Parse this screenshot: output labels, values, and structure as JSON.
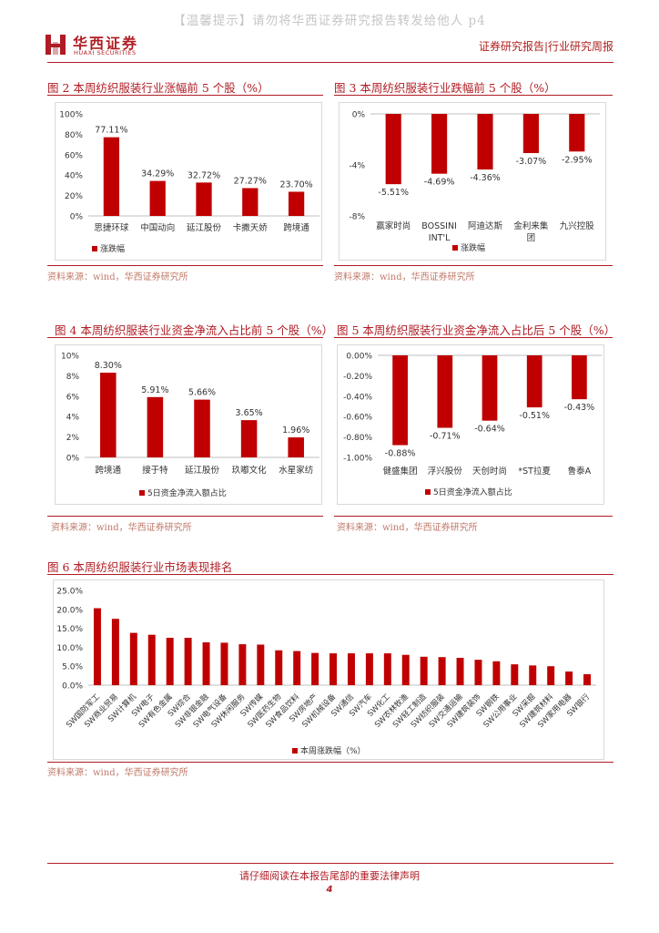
{
  "header": {
    "watermark": "【温馨提示】请勿将华西证券研究报告转发给他人 p4",
    "logo_cn": "华西证券",
    "logo_en": "HUAXI SECURITIES",
    "report_type": "证券研究报告|行业研究周报",
    "logo_mark_icon": "huaxi-logo-icon",
    "accent_color": "#b01c24",
    "bar_color": "#c00000"
  },
  "fig2": {
    "title": "图 2 本周纺织服装行业涨幅前 5 个股（%）",
    "source": "资料来源：wind，华西证券研究所",
    "chart_data": {
      "type": "bar",
      "categories": [
        "思捷环球",
        "中国动向",
        "延江股份",
        "卡撒天娇",
        "跨境通"
      ],
      "values": [
        77.11,
        34.29,
        32.72,
        27.27,
        23.7
      ],
      "value_labels": [
        "77.11%",
        "34.29%",
        "32.72%",
        "27.27%",
        "23.70%"
      ],
      "ylim": [
        0,
        100
      ],
      "yticks": [
        0,
        20,
        40,
        60,
        80,
        100
      ],
      "ytick_labels": [
        "0%",
        "20%",
        "40%",
        "60%",
        "80%",
        "100%"
      ],
      "legend": "涨跌幅"
    }
  },
  "fig3": {
    "title": "图 3 本周纺织服装行业跌幅前 5 个股（%）",
    "source": "资料来源：wind，华西证券研究所",
    "chart_data": {
      "type": "bar",
      "categories": [
        "赢家时尚",
        "BOSSINI INT'L",
        "阿迪达斯",
        "金利来集团",
        "九兴控股"
      ],
      "values": [
        -5.51,
        -4.69,
        -4.36,
        -3.07,
        -2.95
      ],
      "value_labels": [
        "-5.51%",
        "-4.69%",
        "-4.36%",
        "-3.07%",
        "-2.95%"
      ],
      "ylim": [
        -8,
        0
      ],
      "yticks": [
        0,
        -4,
        -8
      ],
      "ytick_labels": [
        "0%",
        "-4%",
        "-8%"
      ],
      "legend": "涨跌幅"
    }
  },
  "fig4": {
    "title": "图 4 本周纺织服装行业资金净流入占比前 5 个股（%）",
    "source": "资料来源：wind，华西证券研究所",
    "chart_data": {
      "type": "bar",
      "categories": [
        "跨境通",
        "搜于特",
        "延江股份",
        "玖嘟文化",
        "水星家纺"
      ],
      "values": [
        8.3,
        5.91,
        5.66,
        3.65,
        1.96
      ],
      "value_labels": [
        "8.30%",
        "5.91%",
        "5.66%",
        "3.65%",
        "1.96%"
      ],
      "ylim": [
        0,
        10
      ],
      "yticks": [
        0,
        2,
        4,
        6,
        8,
        10
      ],
      "ytick_labels": [
        "0%",
        "2%",
        "4%",
        "6%",
        "8%",
        "10%"
      ],
      "legend": "5日资金净流入额占比"
    }
  },
  "fig5": {
    "title": "图 5 本周纺织服装行业资金净流入占比后 5 个股（%）",
    "source": "资料来源：wind，华西证券研究所",
    "chart_data": {
      "type": "bar",
      "categories": [
        "健盛集团",
        "浮兴股份",
        "天创时尚",
        "*ST拉夏",
        "鲁泰A"
      ],
      "values": [
        -0.88,
        -0.71,
        -0.64,
        -0.51,
        -0.43
      ],
      "value_labels": [
        "-0.88%",
        "-0.71%",
        "-0.64%",
        "-0.51%",
        "-0.43%"
      ],
      "ylim": [
        -1,
        0
      ],
      "yticks": [
        0,
        -0.2,
        -0.4,
        -0.6,
        -0.8,
        -1
      ],
      "ytick_labels": [
        "0.00%",
        "-0.20%",
        "-0.40%",
        "-0.60%",
        "-0.80%",
        "-1.00%"
      ],
      "legend": "5日资金净流入额占比"
    }
  },
  "fig6": {
    "title": "图 6 本周纺织服装行业市场表现排名",
    "source": "资料来源：wind，华西证券研究所",
    "chart_data": {
      "type": "bar",
      "categories": [
        "SW国防军工",
        "SW商业贸易",
        "SW计算机",
        "SW电子",
        "SW有色金属",
        "SW综合",
        "SW非银金融",
        "SW电气设备",
        "SW休闲服务",
        "SW传媒",
        "SW医药生物",
        "SW食品饮料",
        "SW房地产",
        "SW机械设备",
        "SW通信",
        "SW汽车",
        "SW化工",
        "SW农林牧渔",
        "SW轻工制造",
        "SW纺织服装",
        "SW交通运输",
        "SW建筑装饰",
        "SW钢铁",
        "SW公用事业",
        "SW采掘",
        "SW建筑材料",
        "SW家用电器",
        "SW银行"
      ],
      "values": [
        20.3,
        17.5,
        13.8,
        13.3,
        12.5,
        12.5,
        11.3,
        11.2,
        10.8,
        10.7,
        9.2,
        9.0,
        8.5,
        8.4,
        8.4,
        8.4,
        8.4,
        8.0,
        7.5,
        7.4,
        7.2,
        6.7,
        6.3,
        5.5,
        5.2,
        5.0,
        3.6,
        2.9
      ],
      "ylim": [
        0,
        25
      ],
      "yticks": [
        0,
        5,
        10,
        15,
        20,
        25
      ],
      "ytick_labels": [
        "0.0%",
        "5.0%",
        "10.0%",
        "15.0%",
        "20.0%",
        "25.0%"
      ],
      "legend": "本周涨跌幅（%）"
    }
  },
  "footer": {
    "disclaimer": "请仔细阅读在本报告尾部的重要法律声明",
    "page_number": "4"
  }
}
